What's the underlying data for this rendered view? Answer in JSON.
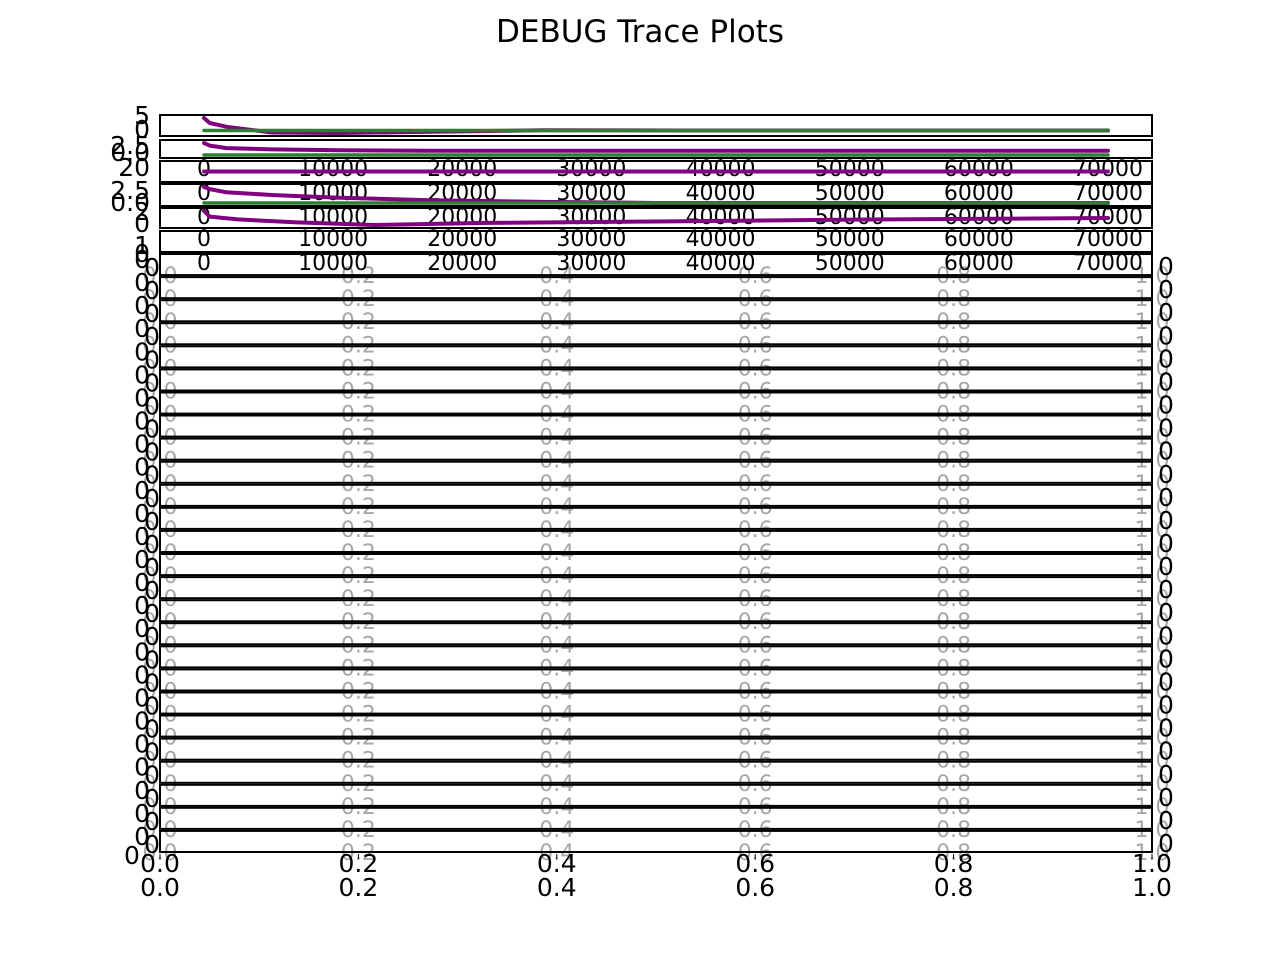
{
  "figure": {
    "title": "DEBUG Trace Plots"
  },
  "colors": {
    "trace": "#800080",
    "running_mean": "#2e7d32",
    "axes": "#000000",
    "background": "#ffffff"
  },
  "chart_data": [
    {
      "type": "line",
      "panel": 1,
      "yticks": [
        "5",
        "0"
      ],
      "xticks": [],
      "series": [
        {
          "color": "#800080",
          "x": [
            0,
            500,
            2000,
            6000,
            12000,
            20000,
            30000,
            42000,
            55000,
            70000,
            80000
          ],
          "y": [
            5.0,
            3.0,
            1.5,
            -0.8,
            -1.0,
            -0.5,
            0.1,
            0.0,
            0.0,
            0.0,
            0.0
          ]
        },
        {
          "color": "#2e7d32",
          "x": [
            0,
            80000
          ],
          "y": [
            0.0,
            0.0
          ]
        }
      ]
    },
    {
      "type": "line",
      "panel": 2,
      "yticks": [
        "2.5",
        "0.0"
      ],
      "xticks": [
        "0",
        "10000",
        "20000",
        "30000",
        "40000",
        "50000",
        "60000",
        "70000"
      ],
      "series": [
        {
          "color": "#800080",
          "x": [
            0,
            500,
            2000,
            6000,
            12000,
            20000,
            40000,
            60000,
            80000
          ],
          "y": [
            2.8,
            2.2,
            1.6,
            1.3,
            1.1,
            1.0,
            1.0,
            1.0,
            1.0
          ]
        },
        {
          "color": "#2e7d32",
          "x": [
            0,
            80000
          ],
          "y": [
            0.0,
            0.0
          ]
        }
      ]
    },
    {
      "type": "line",
      "panel": 3,
      "yticks": [
        "20"
      ],
      "xticks": [
        "0",
        "10000",
        "20000",
        "30000",
        "40000",
        "50000",
        "60000",
        "70000"
      ],
      "series": [
        {
          "color": "#800080",
          "x": [
            0,
            80000
          ],
          "y": [
            20,
            20
          ]
        }
      ]
    },
    {
      "type": "line",
      "panel": 4,
      "yticks": [
        "2.5",
        "0.0"
      ],
      "xticks": [
        "0",
        "10000",
        "20000",
        "30000",
        "40000",
        "50000",
        "60000",
        "70000"
      ],
      "series": [
        {
          "color": "#800080",
          "x": [
            0,
            500,
            2000,
            6000,
            12000,
            20000,
            30000,
            40000,
            60000,
            80000
          ],
          "y": [
            3.0,
            2.6,
            2.0,
            1.5,
            1.0,
            0.5,
            0.2,
            0.0,
            0.0,
            0.0
          ]
        },
        {
          "color": "#2e7d32",
          "x": [
            0,
            80000
          ],
          "y": [
            0.0,
            0.0
          ]
        }
      ]
    },
    {
      "type": "line",
      "panel": 5,
      "yticks": [
        "2",
        "0"
      ],
      "xticks": [
        "0",
        "10000",
        "20000",
        "30000",
        "40000",
        "50000",
        "60000",
        "70000"
      ],
      "series": [
        {
          "color": "#800080",
          "x": [
            0,
            500,
            3000,
            8000,
            15000,
            25000,
            40000,
            60000,
            80000
          ],
          "y": [
            2.0,
            1.2,
            0.8,
            0.4,
            0.0,
            0.3,
            0.5,
            0.8,
            1.0
          ]
        }
      ]
    },
    {
      "type": "line",
      "panel": 6,
      "empty": true,
      "yticks": [
        "1",
        "0"
      ],
      "xticks": [
        "0",
        "10000",
        "20000",
        "30000",
        "40000",
        "50000",
        "60000",
        "70000"
      ],
      "series": []
    }
  ],
  "empty_panels": {
    "count": 26,
    "left_tick_labels": [
      "0",
      "0"
    ],
    "right_tick_label": "0",
    "xticks": [
      "0.0",
      "0.2",
      "0.4",
      "0.6",
      "0.8",
      "1.0"
    ],
    "bottom_xticks_row1": [
      "0.0",
      "0.2",
      "0.4",
      "0.6",
      "0.8",
      "1.0"
    ],
    "bottom_xticks_row2": [
      "0.0",
      "0.2",
      "0.4",
      "0.6",
      "0.8",
      "1.0"
    ],
    "bottom_left_label": "0"
  }
}
